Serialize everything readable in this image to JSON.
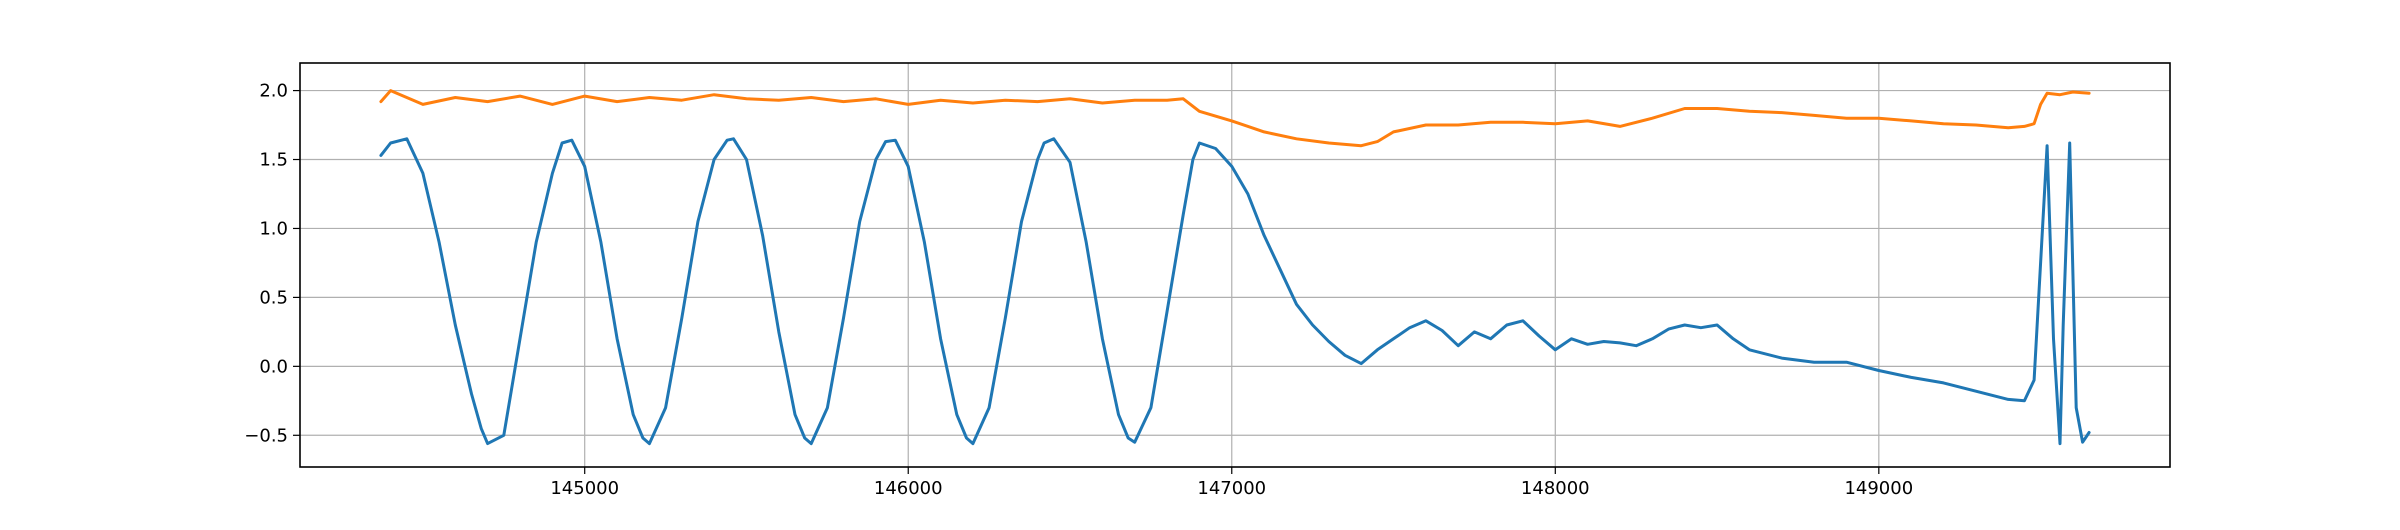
{
  "chart_data": {
    "type": "line",
    "title": "",
    "xlabel": "",
    "ylabel": "",
    "xlim": [
      144120,
      149900
    ],
    "ylim": [
      -0.73,
      2.2
    ],
    "grid": true,
    "legend": "none",
    "x_ticks": [
      145000,
      146000,
      147000,
      148000,
      149000
    ],
    "x_tick_labels": [
      "145000",
      "146000",
      "147000",
      "148000",
      "149000"
    ],
    "y_ticks": [
      -0.5,
      0.0,
      0.5,
      1.0,
      1.5,
      2.0
    ],
    "y_tick_labels": [
      "−0.5",
      "0.0",
      "0.5",
      "1.0",
      "1.5",
      "2.0"
    ],
    "series": [
      {
        "color": "#1f77b4",
        "x": [
          144370,
          144400,
          144450,
          144500,
          144550,
          144600,
          144650,
          144680,
          144700,
          144750,
          144800,
          144850,
          144900,
          144930,
          144960,
          145000,
          145050,
          145100,
          145150,
          145180,
          145200,
          145250,
          145300,
          145350,
          145400,
          145440,
          145460,
          145500,
          145550,
          145600,
          145650,
          145680,
          145700,
          145750,
          145800,
          145850,
          145900,
          145930,
          145960,
          146000,
          146050,
          146100,
          146150,
          146180,
          146200,
          146250,
          146300,
          146350,
          146400,
          146420,
          146450,
          146500,
          146550,
          146600,
          146650,
          146680,
          146700,
          146750,
          146800,
          146850,
          146880,
          146900,
          146950,
          147000,
          147050,
          147100,
          147150,
          147200,
          147250,
          147300,
          147350,
          147400,
          147450,
          147500,
          147550,
          147600,
          147650,
          147700,
          147750,
          147800,
          147850,
          147900,
          147950,
          148000,
          148050,
          148100,
          148150,
          148200,
          148250,
          148300,
          148350,
          148400,
          148450,
          148500,
          148550,
          148600,
          148700,
          148800,
          148900,
          149000,
          149100,
          149200,
          149300,
          149400,
          149450,
          149480,
          149520,
          149540,
          149560,
          149570,
          149590,
          149610,
          149630,
          149650
        ],
        "y": [
          1.53,
          1.62,
          1.65,
          1.4,
          0.9,
          0.3,
          -0.2,
          -0.45,
          -0.56,
          -0.5,
          0.2,
          0.9,
          1.4,
          1.62,
          1.64,
          1.45,
          0.9,
          0.2,
          -0.35,
          -0.52,
          -0.56,
          -0.3,
          0.35,
          1.05,
          1.5,
          1.64,
          1.65,
          1.5,
          0.95,
          0.25,
          -0.35,
          -0.52,
          -0.56,
          -0.3,
          0.35,
          1.05,
          1.5,
          1.63,
          1.64,
          1.45,
          0.9,
          0.2,
          -0.35,
          -0.52,
          -0.56,
          -0.3,
          0.35,
          1.05,
          1.5,
          1.62,
          1.65,
          1.48,
          0.9,
          0.2,
          -0.35,
          -0.52,
          -0.55,
          -0.3,
          0.4,
          1.1,
          1.5,
          1.62,
          1.58,
          1.45,
          1.25,
          0.95,
          0.7,
          0.45,
          0.3,
          0.18,
          0.08,
          0.02,
          0.12,
          0.2,
          0.28,
          0.33,
          0.26,
          0.15,
          0.25,
          0.2,
          0.3,
          0.33,
          0.22,
          0.12,
          0.2,
          0.16,
          0.18,
          0.17,
          0.15,
          0.2,
          0.27,
          0.3,
          0.28,
          0.3,
          0.2,
          0.12,
          0.06,
          0.03,
          0.03,
          -0.03,
          -0.08,
          -0.12,
          -0.18,
          -0.24,
          -0.25,
          -0.1,
          1.6,
          0.2,
          -0.56,
          0.3,
          1.62,
          -0.3,
          -0.55,
          -0.48
        ]
      },
      {
        "color": "#ff7f0e",
        "x": [
          144370,
          144400,
          144500,
          144600,
          144700,
          144800,
          144900,
          145000,
          145100,
          145200,
          145300,
          145400,
          145500,
          145600,
          145700,
          145800,
          145900,
          146000,
          146100,
          146200,
          146300,
          146400,
          146500,
          146600,
          146700,
          146800,
          146850,
          146900,
          147000,
          147100,
          147200,
          147300,
          147400,
          147450,
          147500,
          147600,
          147700,
          147800,
          147900,
          148000,
          148100,
          148200,
          148300,
          148400,
          148500,
          148600,
          148700,
          148800,
          148900,
          149000,
          149100,
          149200,
          149300,
          149400,
          149450,
          149480,
          149500,
          149520,
          149560,
          149600,
          149650
        ],
        "y": [
          1.92,
          2.0,
          1.9,
          1.95,
          1.92,
          1.96,
          1.9,
          1.96,
          1.92,
          1.95,
          1.93,
          1.97,
          1.94,
          1.93,
          1.95,
          1.92,
          1.94,
          1.9,
          1.93,
          1.91,
          1.93,
          1.92,
          1.94,
          1.91,
          1.93,
          1.93,
          1.94,
          1.85,
          1.78,
          1.7,
          1.65,
          1.62,
          1.6,
          1.63,
          1.7,
          1.75,
          1.75,
          1.77,
          1.77,
          1.76,
          1.78,
          1.74,
          1.8,
          1.87,
          1.87,
          1.85,
          1.84,
          1.82,
          1.8,
          1.8,
          1.78,
          1.76,
          1.75,
          1.73,
          1.74,
          1.76,
          1.9,
          1.98,
          1.97,
          1.99,
          1.98
        ]
      }
    ]
  }
}
